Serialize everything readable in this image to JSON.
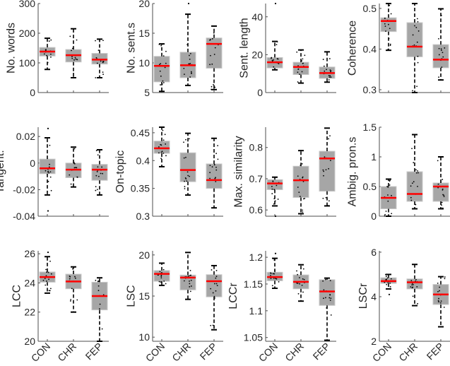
{
  "chart_data": {
    "type": "box",
    "groups": [
      "CON",
      "CHR",
      "FEP"
    ],
    "colors": {
      "box": "#a6a6a6",
      "box_edge": "#c9c9c9",
      "median": "#ff0000",
      "whisker": "#000000",
      "axis": "#4d4d4d"
    },
    "stats_order": [
      "whisker_low",
      "q1",
      "median",
      "q3",
      "whisker_high"
    ],
    "panels": [
      {
        "ylabel": "No. words",
        "ylim": [
          0,
          300
        ],
        "yticks": [
          0,
          100,
          200,
          300
        ],
        "ytick_labels": [
          "0",
          "100",
          "200",
          "300"
        ],
        "boxes": [
          [
            78,
            123,
            138,
            152,
            183
          ],
          [
            50,
            103,
            126,
            145,
            215
          ],
          [
            50,
            96,
            111,
            132,
            180
          ]
        ],
        "outliers": [
          [],
          [],
          []
        ]
      },
      {
        "ylabel": "No. sent.s",
        "ylim": [
          5,
          20
        ],
        "yticks": [
          5,
          10,
          15,
          20
        ],
        "ytick_labels": [
          "5",
          "10",
          "15",
          "20"
        ],
        "boxes": [
          [
            5.2,
            6.8,
            9.5,
            11.1,
            13.2
          ],
          [
            6.2,
            7.5,
            9.6,
            11.8,
            18.2
          ],
          [
            5.5,
            9.1,
            13.2,
            14.2,
            16.2
          ]
        ],
        "outliers": [
          [],
          [
            20
          ],
          []
        ]
      },
      {
        "ylabel": "Sent. length",
        "ylim": [
          0,
          47
        ],
        "yticks": [
          0,
          20,
          40
        ],
        "ytick_labels": [
          "0",
          "20",
          "40"
        ],
        "boxes": [
          [
            12,
            13,
            16,
            18.5,
            27
          ],
          [
            5,
            9.5,
            13.5,
            16,
            22.5
          ],
          [
            5.5,
            7.5,
            10.3,
            13.5,
            21.5
          ]
        ],
        "outliers": [
          [
            47
          ],
          [],
          []
        ]
      },
      {
        "ylabel": "Coherence",
        "ylim": [
          0.293,
          0.512
        ],
        "yticks": [
          0.3,
          0.4,
          0.5
        ],
        "ytick_labels": [
          "0.3",
          "0.4",
          "0.5"
        ],
        "boxes": [
          [
            0.397,
            0.443,
            0.469,
            0.477,
            0.512
          ],
          [
            0.293,
            0.381,
            0.406,
            0.465,
            0.512
          ],
          [
            0.324,
            0.354,
            0.374,
            0.411,
            0.499
          ]
        ],
        "outliers": [
          [],
          [],
          []
        ]
      },
      {
        "ylabel": "Tangent.",
        "ylim": [
          -0.04,
          0.027
        ],
        "yticks": [
          -0.04,
          -0.02,
          0,
          0.02
        ],
        "ytick_labels": [
          "-0.04",
          "-0.02",
          "0",
          "0.02"
        ],
        "boxes": [
          [
            -0.024,
            -0.008,
            -0.004,
            0.003,
            0.019
          ],
          [
            -0.018,
            -0.011,
            -0.005,
            0.0,
            0.012
          ],
          [
            -0.024,
            -0.013,
            -0.005,
            -0.001,
            0.01
          ]
        ],
        "outliers": [
          [
            0.026,
            -0.036
          ],
          [],
          []
        ]
      },
      {
        "ylabel": "On-topic",
        "ylim": [
          0.3,
          0.46
        ],
        "yticks": [
          0.3,
          0.35,
          0.4,
          0.45
        ],
        "ytick_labels": [
          "0.3",
          "0.35",
          "0.4",
          "0.45"
        ],
        "boxes": [
          [
            0.389,
            0.413,
            0.422,
            0.435,
            0.46
          ],
          [
            0.338,
            0.362,
            0.383,
            0.414,
            0.449
          ],
          [
            0.315,
            0.35,
            0.365,
            0.394,
            0.44
          ]
        ],
        "outliers": [
          [],
          [],
          []
        ]
      },
      {
        "ylabel": "Max. similarity",
        "ylim": [
          0.58,
          0.865
        ],
        "yticks": [
          0.6,
          0.7,
          0.8
        ],
        "ytick_labels": [
          "0.6",
          "0.7",
          "0.8"
        ],
        "boxes": [
          [
            0.613,
            0.665,
            0.685,
            0.697,
            0.705
          ],
          [
            0.588,
            0.64,
            0.695,
            0.74,
            0.79
          ],
          [
            0.613,
            0.66,
            0.765,
            0.788,
            0.862
          ]
        ],
        "outliers": [
          [
            0.58
          ],
          [],
          []
        ]
      },
      {
        "ylabel": "Ambig. pron.s",
        "ylim": [
          0,
          1.5
        ],
        "yticks": [
          0,
          0.5,
          1,
          1.5
        ],
        "ytick_labels": [
          "0",
          "0.5",
          "1",
          "1.5"
        ],
        "boxes": [
          [
            0,
            0.125,
            0.31,
            0.5,
            0.625
          ],
          [
            0.125,
            0.25,
            0.375,
            0.75,
            1.375
          ],
          [
            0.125,
            0.25,
            0.5,
            0.56,
            1.0
          ]
        ],
        "outliers": [
          [],
          [],
          []
        ]
      },
      {
        "ylabel": "LCC",
        "ylim": [
          20,
          26.2
        ],
        "yticks": [
          20,
          22,
          24,
          26
        ],
        "ytick_labels": [
          "20",
          "22",
          "24",
          "26"
        ],
        "boxes": [
          [
            23.3,
            24.05,
            24.4,
            24.75,
            25.8
          ],
          [
            22.0,
            23.6,
            24.1,
            24.6,
            25.1
          ],
          [
            20.0,
            22.15,
            23.1,
            24.05,
            24.35
          ]
        ],
        "outliers": [
          [
            26.1
          ],
          [],
          []
        ]
      },
      {
        "ylabel": "LSC",
        "ylim": [
          9.5,
          20.5
        ],
        "yticks": [
          10,
          15,
          20
        ],
        "ytick_labels": [
          "10",
          "15",
          "20"
        ],
        "boxes": [
          [
            16.3,
            16.8,
            17.7,
            18.1,
            19.0
          ],
          [
            14.6,
            15.75,
            17.25,
            17.55,
            20.3
          ],
          [
            10.9,
            14.9,
            16.8,
            17.6,
            18.7
          ]
        ],
        "outliers": [
          [],
          [],
          []
        ]
      },
      {
        "ylabel": "LCCr",
        "ylim": [
          1.043,
          1.212
        ],
        "yticks": [
          1.05,
          1.1,
          1.15,
          1.2
        ],
        "ytick_labels": [
          "1.05",
          "1.1",
          "1.15",
          "1.2"
        ],
        "boxes": [
          [
            1.142,
            1.156,
            1.163,
            1.172,
            1.198
          ],
          [
            1.118,
            1.141,
            1.154,
            1.167,
            1.186
          ],
          [
            1.045,
            1.11,
            1.136,
            1.158,
            1.161
          ]
        ],
        "outliers": [
          [
            1.207
          ],
          [],
          []
        ]
      },
      {
        "ylabel": "LSCr",
        "ylim": [
          2,
          6.06
        ],
        "yticks": [
          2,
          4,
          6
        ],
        "ytick_labels": [
          "2",
          "4",
          "6"
        ],
        "boxes": [
          [
            4.35,
            4.6,
            4.7,
            4.85,
            5.0
          ],
          [
            3.6,
            4.35,
            4.65,
            4.8,
            5.45
          ],
          [
            2.65,
            3.65,
            4.1,
            4.55,
            4.9
          ]
        ],
        "outliers": [
          [
            4.1
          ],
          [],
          []
        ]
      }
    ],
    "xtick_labels": [
      "CON",
      "CHR",
      "FEP"
    ],
    "grid": false,
    "legend": "none"
  }
}
